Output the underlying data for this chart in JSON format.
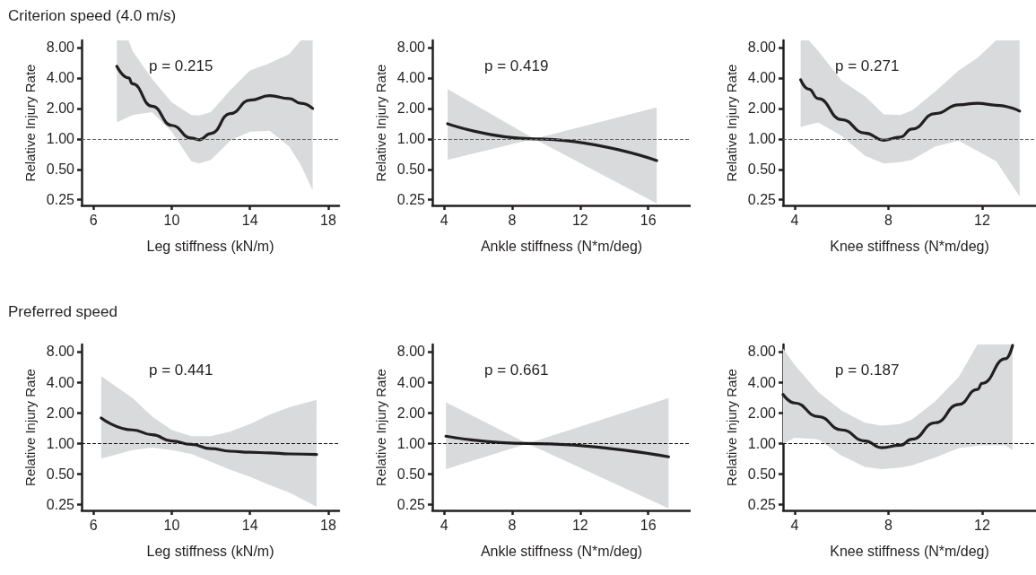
{
  "chart_data": [
    {
      "type": "line",
      "title": "Criterion speed (4.0 m/s)",
      "xlabel": "Leg stiffness (kN/m)",
      "ylabel": "Relative Injury Rate",
      "annotations": [
        "p = 0.215"
      ],
      "log": "y",
      "grid": false,
      "xlim": [
        5.4,
        18.55
      ],
      "xticks": [
        6,
        10,
        14,
        18
      ],
      "ylim": [
        0.22,
        9.4
      ],
      "yticks": [
        {
          "value": 0.25,
          "label": "0.25"
        },
        {
          "value": 0.5,
          "label": "0.50"
        },
        {
          "value": 1,
          "label": "1.00"
        },
        {
          "value": 2,
          "label": "2.00"
        },
        {
          "value": 4,
          "label": "4.00"
        },
        {
          "value": 8,
          "label": "8.00"
        }
      ],
      "ref_lines": [
        {
          "axis": "y",
          "value": 1,
          "color": "#666666",
          "line_style": "dashed"
        }
      ],
      "series": [
        {
          "color": "#231f20",
          "x": [
            7.2,
            7.8,
            8,
            9,
            10,
            11,
            11.4,
            12,
            13,
            14,
            15,
            16,
            16.6,
            17.2
          ],
          "values": [
            5.2,
            4.0,
            3.5,
            2.1,
            1.36,
            1.02,
            0.98,
            1.13,
            1.78,
            2.41,
            2.67,
            2.5,
            2.25,
            2.0
          ],
          "upper": [
            9.4,
            9.4,
            7.4,
            3.9,
            2.3,
            1.72,
            1.7,
            1.84,
            3.05,
            4.75,
            5.6,
            6.9,
            9.4,
            9.4
          ],
          "lower": [
            1.45,
            1.65,
            1.72,
            1.84,
            1.18,
            0.6,
            0.57,
            0.62,
            0.96,
            1.18,
            1.2,
            0.84,
            0.55,
            0.31
          ]
        }
      ]
    },
    {
      "type": "line",
      "xlabel": "Ankle stiffness (N*m/deg)",
      "ylabel": "Relative Injury Rate",
      "annotations": [
        "p = 0.419"
      ],
      "log": "y",
      "grid": false,
      "xlim": [
        3.3,
        18.5
      ],
      "xticks": [
        4,
        8,
        12,
        16
      ],
      "ylim": [
        0.22,
        9.4
      ],
      "yticks": [
        {
          "value": 0.25,
          "label": "0.25"
        },
        {
          "value": 0.5,
          "label": "0.50"
        },
        {
          "value": 1,
          "label": "1.00"
        },
        {
          "value": 2,
          "label": "2.00"
        },
        {
          "value": 4,
          "label": "4.00"
        },
        {
          "value": 8,
          "label": "8.00"
        }
      ],
      "ref_lines": [
        {
          "axis": "y",
          "value": 1,
          "color": "#666666",
          "line_style": "dashed"
        }
      ],
      "series": [
        {
          "color": "#231f20",
          "x": [
            4.2,
            9.3,
            16.5
          ],
          "values": [
            1.41,
            1.0,
            0.61
          ],
          "upper": [
            3.1,
            1.0,
            2.04
          ],
          "lower": [
            0.62,
            1.0,
            0.23
          ]
        }
      ]
    },
    {
      "type": "line",
      "xlabel": "Knee stiffness (N*m/deg)",
      "ylabel": "Relative Injury Rate",
      "annotations": [
        "p = 0.271"
      ],
      "log": "y",
      "grid": false,
      "xlim": [
        3.5,
        14.3
      ],
      "xticks": [
        4,
        8,
        12
      ],
      "ylim": [
        0.22,
        9.4
      ],
      "yticks": [
        {
          "value": 0.25,
          "label": "0.25"
        },
        {
          "value": 0.5,
          "label": "0.50"
        },
        {
          "value": 1,
          "label": "1.00"
        },
        {
          "value": 2,
          "label": "2.00"
        },
        {
          "value": 4,
          "label": "4.00"
        },
        {
          "value": 8,
          "label": "8.00"
        }
      ],
      "ref_lines": [
        {
          "axis": "y",
          "value": 1,
          "color": "#666666",
          "line_style": "dashed"
        }
      ],
      "series": [
        {
          "color": "#231f20",
          "x": [
            4.25,
            4.6,
            5,
            6,
            7,
            7.8,
            8.5,
            9,
            10,
            11,
            11.8,
            12.6,
            13.6
          ],
          "values": [
            3.84,
            3.1,
            2.5,
            1.55,
            1.14,
            0.97,
            1.04,
            1.25,
            1.78,
            2.17,
            2.25,
            2.15,
            1.88
          ],
          "upper": [
            9.4,
            9.4,
            7.4,
            3.76,
            2.64,
            1.75,
            1.72,
            1.9,
            2.93,
            4.75,
            6.3,
            9.4,
            9.4
          ],
          "lower": [
            1.31,
            1.38,
            1.45,
            1.07,
            0.68,
            0.57,
            0.59,
            0.62,
            0.84,
            0.96,
            0.76,
            0.6,
            0.27
          ]
        }
      ]
    },
    {
      "type": "line",
      "title": "Preferred speed",
      "xlabel": "Leg stiffness (kN/m)",
      "ylabel": "Relative Injury Rate",
      "annotations": [
        "p = 0.441"
      ],
      "log": "y",
      "grid": false,
      "xlim": [
        5.4,
        18.55
      ],
      "xticks": [
        6,
        10,
        14,
        18
      ],
      "ylim": [
        0.22,
        9.4
      ],
      "yticks": [
        {
          "value": 0.25,
          "label": "0.25"
        },
        {
          "value": 0.5,
          "label": "0.50"
        },
        {
          "value": 1,
          "label": "1.00"
        },
        {
          "value": 2,
          "label": "2.00"
        },
        {
          "value": 4,
          "label": "4.00"
        },
        {
          "value": 8,
          "label": "8.00"
        }
      ],
      "ref_lines": [
        {
          "axis": "y",
          "value": 1,
          "color": "#111111",
          "line_style": "dashed"
        }
      ],
      "series": [
        {
          "color": "#231f20",
          "x": [
            6.4,
            8,
            9,
            10,
            11,
            12,
            13,
            14,
            15,
            16,
            17.4
          ],
          "values": [
            1.78,
            1.36,
            1.22,
            1.06,
            0.98,
            0.89,
            0.84,
            0.82,
            0.81,
            0.79,
            0.78
          ],
          "upper": [
            4.6,
            2.8,
            1.84,
            1.36,
            1.18,
            1.18,
            1.31,
            1.55,
            1.92,
            2.27,
            2.69
          ],
          "lower": [
            0.71,
            0.86,
            0.91,
            0.86,
            0.79,
            0.66,
            0.55,
            0.47,
            0.39,
            0.33,
            0.24
          ]
        }
      ]
    },
    {
      "type": "line",
      "xlabel": "Ankle stiffness (N*m/deg)",
      "ylabel": "Relative Injury Rate",
      "annotations": [
        "p = 0.661"
      ],
      "log": "y",
      "grid": false,
      "xlim": [
        3.3,
        18.5
      ],
      "xticks": [
        4,
        8,
        12,
        16
      ],
      "ylim": [
        0.22,
        9.4
      ],
      "yticks": [
        {
          "value": 0.25,
          "label": "0.25"
        },
        {
          "value": 0.5,
          "label": "0.50"
        },
        {
          "value": 1,
          "label": "1.00"
        },
        {
          "value": 2,
          "label": "2.00"
        },
        {
          "value": 4,
          "label": "4.00"
        },
        {
          "value": 8,
          "label": "8.00"
        }
      ],
      "ref_lines": [
        {
          "axis": "y",
          "value": 1,
          "color": "#111111",
          "line_style": "dashed"
        }
      ],
      "series": [
        {
          "color": "#231f20",
          "x": [
            4.1,
            8.9,
            17.2
          ],
          "values": [
            1.18,
            1.0,
            0.74
          ],
          "upper": [
            2.54,
            1.0,
            2.8
          ],
          "lower": [
            0.56,
            1.0,
            0.23
          ]
        }
      ]
    },
    {
      "type": "line",
      "xlabel": "Knee stiffness (N*m/deg)",
      "ylabel": "Relative Injury Rate",
      "annotations": [
        "p = 0.187"
      ],
      "log": "y",
      "grid": false,
      "xlim": [
        3.5,
        14.3
      ],
      "xticks": [
        4,
        8,
        12
      ],
      "ylim": [
        0.22,
        9.4
      ],
      "yticks": [
        {
          "value": 0.25,
          "label": "0.25"
        },
        {
          "value": 0.5,
          "label": "0.50"
        },
        {
          "value": 1,
          "label": "1.00"
        },
        {
          "value": 2,
          "label": "2.00"
        },
        {
          "value": 4,
          "label": "4.00"
        },
        {
          "value": 8,
          "label": "8.00"
        }
      ],
      "ref_lines": [
        {
          "axis": "y",
          "value": 1,
          "color": "#111111",
          "line_style": "dashed"
        }
      ],
      "series": [
        {
          "color": "#231f20",
          "x": [
            3.5,
            4,
            5,
            6,
            7,
            7.7,
            8.5,
            9,
            10,
            11,
            11.8,
            12,
            13,
            13.3
          ],
          "values": [
            3.03,
            2.5,
            1.84,
            1.36,
            1.06,
            0.91,
            0.96,
            1.1,
            1.6,
            2.42,
            3.4,
            3.9,
            6.8,
            9.2
          ],
          "upper": [
            8.6,
            5.9,
            3.2,
            2.1,
            1.6,
            1.5,
            1.55,
            1.72,
            2.6,
            4.5,
            9.4,
            9.4,
            9.4,
            9.4
          ],
          "lower": [
            1.0,
            1.14,
            1.1,
            0.76,
            0.59,
            0.56,
            0.58,
            0.61,
            0.73,
            0.9,
            0.95,
            0.96,
            0.96,
            0.86
          ]
        }
      ]
    }
  ]
}
